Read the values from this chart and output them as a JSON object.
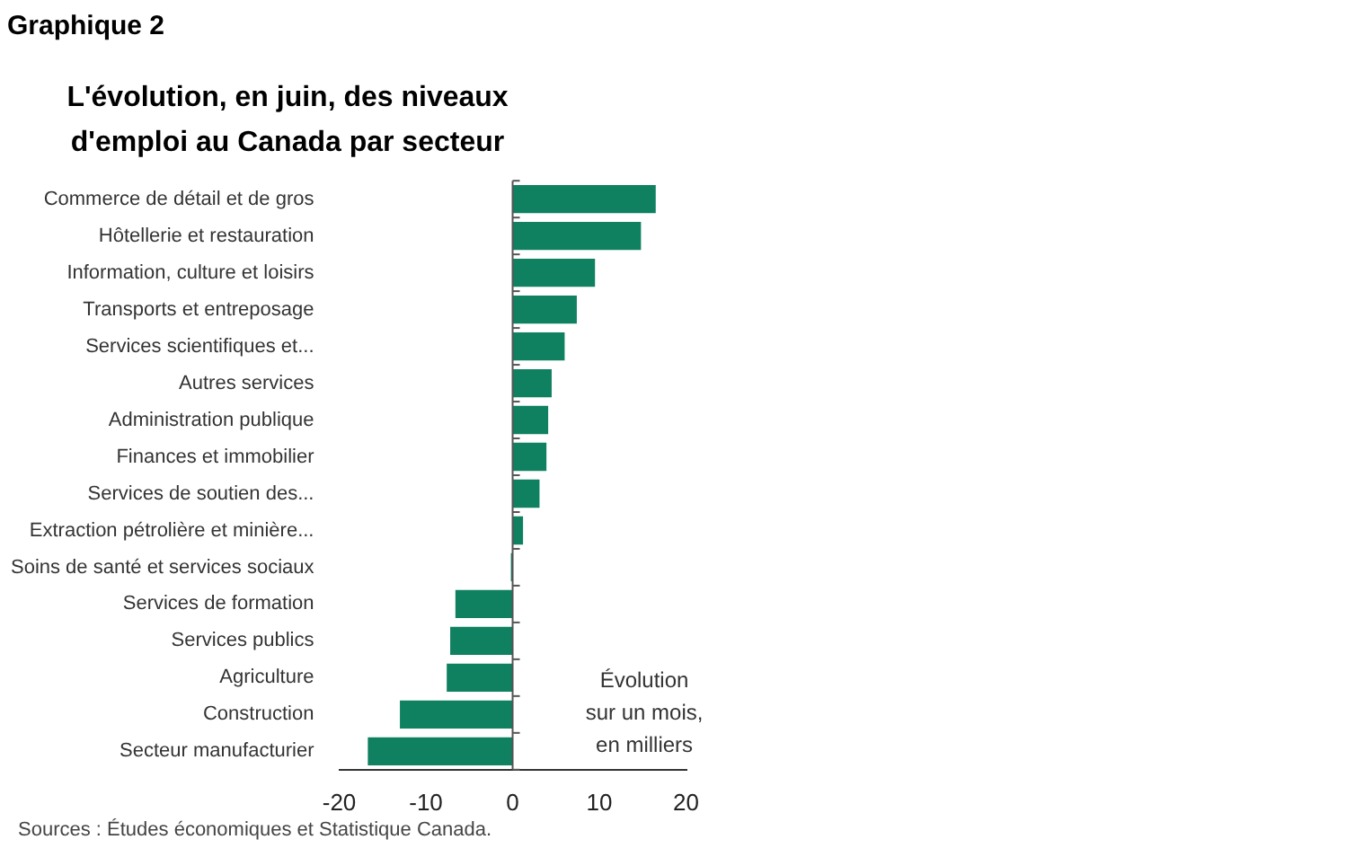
{
  "chart_data": {
    "type": "bar",
    "orientation": "horizontal",
    "title": "Graphique 2",
    "subtitle": "L'évolution, en juin, des niveaux d'emploi au Canada par secteur",
    "categories": [
      "Commerce de détail et de gros",
      "Hôtellerie et restauration",
      "Information, culture et loisirs",
      "Transports et entreposage",
      "Services scientifiques et...",
      "Autres services",
      "Administration publique",
      "Finances et immobilier",
      "Services de soutien des...",
      "Extraction pétrolière et minière...",
      "Soins de santé et services sociaux",
      "Services de formation",
      "Services publics",
      "Agriculture",
      "Construction",
      "Secteur manufacturier"
    ],
    "values": [
      16.5,
      14.8,
      9.5,
      7.4,
      6.0,
      4.5,
      4.1,
      3.9,
      3.1,
      1.2,
      -0.2,
      -6.6,
      -7.2,
      -7.6,
      -13.0,
      -16.7
    ],
    "color": "#0f8060",
    "xlim": [
      -20,
      20
    ],
    "xticks": [
      -20,
      -10,
      0,
      10,
      20
    ],
    "grid": false,
    "ref_lines": [
      {
        "axis": "x",
        "value": 0,
        "color": "#555555"
      }
    ],
    "legend": false,
    "annotations": [
      "Évolution\nsur un mois,\nen milliers",
      "Sources : Études économiques et Statistique Canada."
    ]
  }
}
